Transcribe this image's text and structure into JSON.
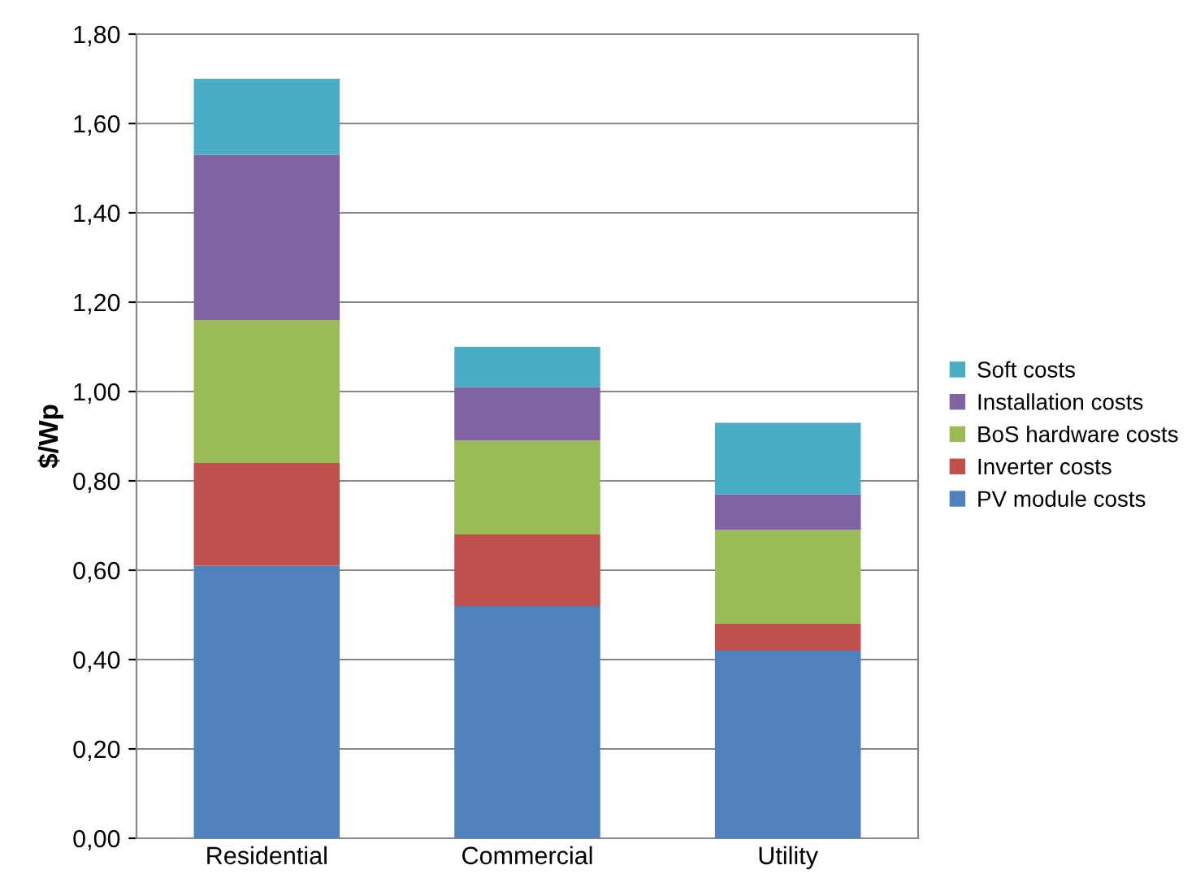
{
  "chart_data": {
    "type": "bar",
    "stacked": true,
    "ylabel": "$/Wp",
    "categories": [
      "Residential",
      "Commercial",
      "Utility"
    ],
    "series": [
      {
        "name": "PV module costs",
        "color": "#4f81bd",
        "values": [
          0.61,
          0.52,
          0.42
        ]
      },
      {
        "name": "Inverter costs",
        "color": "#c0504d",
        "values": [
          0.23,
          0.16,
          0.06
        ]
      },
      {
        "name": "BoS hardware costs",
        "color": "#9bbb59",
        "values": [
          0.32,
          0.21,
          0.21
        ]
      },
      {
        "name": "Installation costs",
        "color": "#8064a2",
        "values": [
          0.37,
          0.12,
          0.08
        ]
      },
      {
        "name": "Soft costs",
        "color": "#4bacc6",
        "values": [
          0.17,
          0.09,
          0.16
        ]
      }
    ],
    "ylim": [
      0,
      1.8
    ],
    "yticks": [
      {
        "value": 0,
        "label": "0,00"
      },
      {
        "value": 0.2,
        "label": "0,20"
      },
      {
        "value": 0.4,
        "label": "0,40"
      },
      {
        "value": 0.6,
        "label": "0,60"
      },
      {
        "value": 0.8,
        "label": "0,80"
      },
      {
        "value": 1.0,
        "label": "1,00"
      },
      {
        "value": 1.2,
        "label": "1,20"
      },
      {
        "value": 1.4,
        "label": "1,40"
      },
      {
        "value": 1.6,
        "label": "1,60"
      },
      {
        "value": 1.8,
        "label": "1,80"
      }
    ],
    "grid": "y",
    "legend": "right"
  }
}
